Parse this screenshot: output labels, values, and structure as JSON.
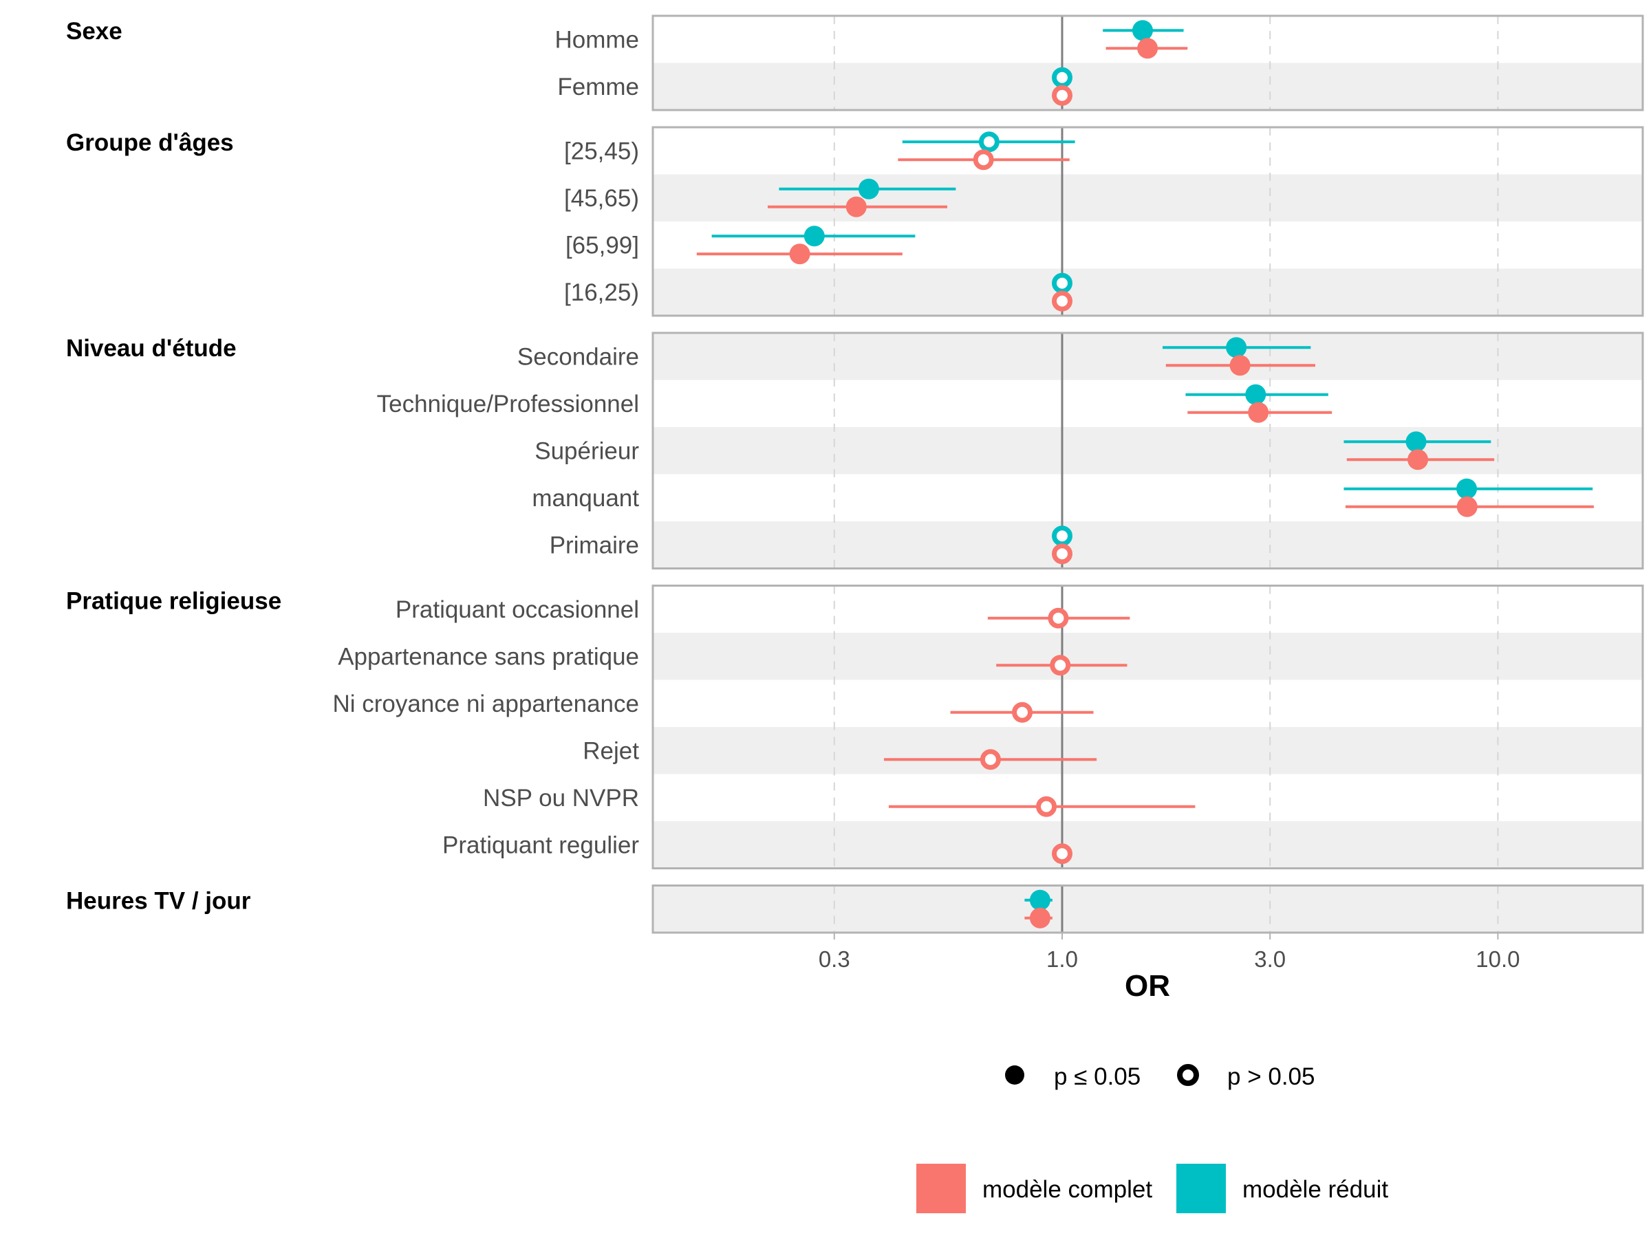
{
  "chart_data": {
    "type": "forest",
    "title": "",
    "xlabel": "OR",
    "ylabel": "",
    "xscale": "log",
    "xlim": [
      0.115,
      21.5
    ],
    "xticks": [
      0.3,
      1.0,
      3.0,
      10.0
    ],
    "xtick_labels": [
      "0.3",
      "1.0",
      "3.0",
      "10.0"
    ],
    "reference_line": 1.0,
    "grid": "dashed vertical at ticks",
    "colors": {
      "complet": "#F8766D",
      "reduit": "#00BFC4"
    },
    "series": [
      {
        "key": "reduit",
        "name": "modèle réduit"
      },
      {
        "key": "complet",
        "name": "modèle complet"
      }
    ],
    "shape_legend": [
      {
        "key": "sig",
        "label": "p ≤ 0.05",
        "shape": "filled-circle"
      },
      {
        "key": "ns",
        "label": "p > 0.05",
        "shape": "open-circle"
      }
    ],
    "legend_placement": "bottom",
    "groups": [
      {
        "label": "Sexe",
        "rows": [
          {
            "label": "Homme",
            "reduit": {
              "or": 1.53,
              "lo": 1.24,
              "hi": 1.9,
              "sig": true
            },
            "complet": {
              "or": 1.57,
              "lo": 1.26,
              "hi": 1.94,
              "sig": true
            }
          },
          {
            "label": "Femme",
            "reduit": {
              "or": 1.0,
              "lo": 1.0,
              "hi": 1.0,
              "sig": false
            },
            "complet": {
              "or": 1.0,
              "lo": 1.0,
              "hi": 1.0,
              "sig": false
            }
          }
        ]
      },
      {
        "label": "Groupe d'âges",
        "rows": [
          {
            "label": "[25,45)",
            "reduit": {
              "or": 0.68,
              "lo": 0.43,
              "hi": 1.07,
              "sig": false
            },
            "complet": {
              "or": 0.66,
              "lo": 0.42,
              "hi": 1.04,
              "sig": false
            }
          },
          {
            "label": "[45,65)",
            "reduit": {
              "or": 0.36,
              "lo": 0.224,
              "hi": 0.57,
              "sig": true
            },
            "complet": {
              "or": 0.337,
              "lo": 0.211,
              "hi": 0.545,
              "sig": true
            }
          },
          {
            "label": "[65,99]",
            "reduit": {
              "or": 0.27,
              "lo": 0.157,
              "hi": 0.46,
              "sig": true
            },
            "complet": {
              "or": 0.25,
              "lo": 0.145,
              "hi": 0.43,
              "sig": true
            }
          },
          {
            "label": "[16,25)",
            "reduit": {
              "or": 1.0,
              "lo": 1.0,
              "hi": 1.0,
              "sig": false
            },
            "complet": {
              "or": 1.0,
              "lo": 1.0,
              "hi": 1.0,
              "sig": false
            }
          }
        ]
      },
      {
        "label": "Niveau d'étude",
        "rows": [
          {
            "label": "Secondaire",
            "reduit": {
              "or": 2.51,
              "lo": 1.7,
              "hi": 3.72,
              "sig": true
            },
            "complet": {
              "or": 2.56,
              "lo": 1.73,
              "hi": 3.81,
              "sig": true
            }
          },
          {
            "label": "Technique/Professionnel",
            "reduit": {
              "or": 2.78,
              "lo": 1.92,
              "hi": 4.08,
              "sig": true
            },
            "complet": {
              "or": 2.82,
              "lo": 1.94,
              "hi": 4.16,
              "sig": true
            }
          },
          {
            "label": "Supérieur",
            "reduit": {
              "or": 6.49,
              "lo": 4.43,
              "hi": 9.64,
              "sig": true
            },
            "complet": {
              "or": 6.55,
              "lo": 4.5,
              "hi": 9.81,
              "sig": true
            }
          },
          {
            "label": "manquant",
            "reduit": {
              "or": 8.48,
              "lo": 4.43,
              "hi": 16.5,
              "sig": true
            },
            "complet": {
              "or": 8.5,
              "lo": 4.47,
              "hi": 16.6,
              "sig": true
            }
          },
          {
            "label": "Primaire",
            "reduit": {
              "or": 1.0,
              "lo": 1.0,
              "hi": 1.0,
              "sig": false
            },
            "complet": {
              "or": 1.0,
              "lo": 1.0,
              "hi": 1.0,
              "sig": false
            }
          }
        ]
      },
      {
        "label": "Pratique religieuse",
        "rows": [
          {
            "label": "Pratiquant occasionnel",
            "complet": {
              "or": 0.98,
              "lo": 0.675,
              "hi": 1.43,
              "sig": false
            }
          },
          {
            "label": "Appartenance sans pratique",
            "complet": {
              "or": 0.99,
              "lo": 0.706,
              "hi": 1.41,
              "sig": false
            }
          },
          {
            "label": "Ni croyance ni appartenance",
            "complet": {
              "or": 0.81,
              "lo": 0.554,
              "hi": 1.18,
              "sig": false
            }
          },
          {
            "label": "Rejet",
            "complet": {
              "or": 0.685,
              "lo": 0.39,
              "hi": 1.2,
              "sig": false
            }
          },
          {
            "label": "NSP ou NVPR",
            "complet": {
              "or": 0.92,
              "lo": 0.4,
              "hi": 2.02,
              "sig": false
            }
          },
          {
            "label": "Pratiquant regulier",
            "complet": {
              "or": 1.0,
              "lo": 1.0,
              "hi": 1.0,
              "sig": false
            }
          }
        ]
      },
      {
        "label": "Heures TV / jour",
        "rows": [
          {
            "label": "",
            "reduit": {
              "or": 0.89,
              "lo": 0.82,
              "hi": 0.95,
              "sig": true
            },
            "complet": {
              "or": 0.89,
              "lo": 0.82,
              "hi": 0.95,
              "sig": true
            }
          }
        ]
      }
    ]
  }
}
